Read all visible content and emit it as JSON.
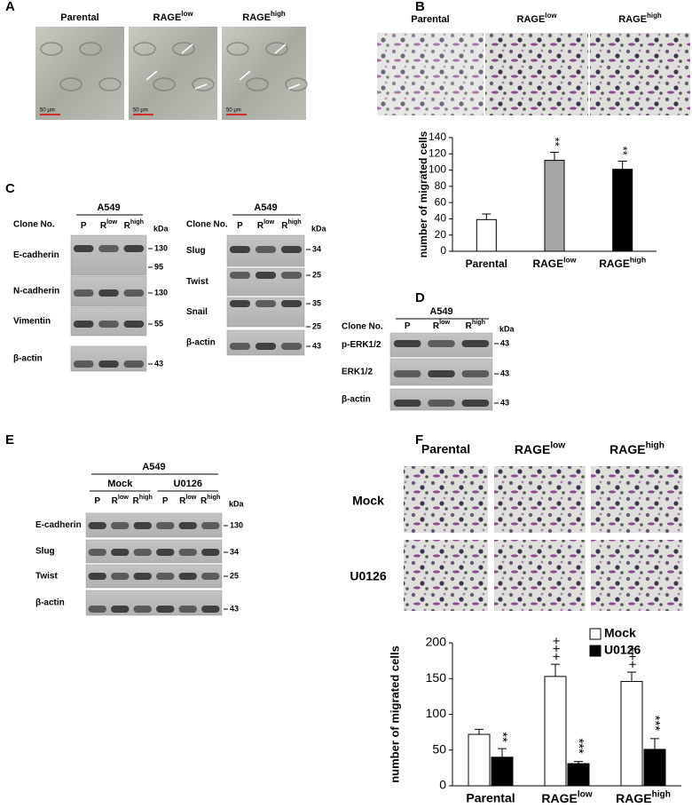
{
  "panel_labels": [
    "A",
    "B",
    "C",
    "D",
    "E",
    "F"
  ],
  "panel_a": {
    "columns": [
      "Parental",
      {
        "label": "RAGE",
        "sup": "low"
      },
      {
        "label": "RAGE",
        "sup": "high"
      }
    ],
    "scale_bar": "50 μm"
  },
  "panel_b": {
    "columns": [
      "Parental",
      {
        "label": "RAGE",
        "sup": "low"
      },
      {
        "label": "RAGE",
        "sup": "high"
      }
    ]
  },
  "panel_f": {
    "columns": [
      "Parental",
      {
        "label": "RAGE",
        "sup": "low"
      },
      {
        "label": "RAGE",
        "sup": "high"
      }
    ],
    "rows": [
      "Mock",
      "U0126"
    ]
  },
  "blots": {
    "c_left": {
      "clone_label": "Clone No.",
      "group": "A549",
      "unit": "kDa",
      "lanes": [
        {
          "label": "P"
        },
        {
          "label": "R",
          "sup": "low"
        },
        {
          "label": "R",
          "sup": "high"
        }
      ],
      "rows": [
        {
          "name": "E-cadherin",
          "markers": [
            130,
            95
          ]
        },
        {
          "name": "N-cadherin",
          "markers": [
            130
          ]
        },
        {
          "name": "Vimentin",
          "markers": [
            55
          ]
        },
        {
          "name": "β-actin",
          "markers": [
            43
          ]
        }
      ]
    },
    "c_right": {
      "clone_label": "Clone No.",
      "group": "A549",
      "unit": "kDa",
      "lanes": [
        {
          "label": "P"
        },
        {
          "label": "R",
          "sup": "low"
        },
        {
          "label": "R",
          "sup": "high"
        }
      ],
      "rows": [
        {
          "name": "Slug",
          "markers": [
            34
          ]
        },
        {
          "name": "Twist",
          "markers": [
            25
          ]
        },
        {
          "name": "Snail",
          "markers": [
            35,
            25
          ]
        },
        {
          "name": "β-actin",
          "markers": [
            43
          ]
        }
      ]
    },
    "d": {
      "clone_label": "Clone No.",
      "group": "A549",
      "unit": "kDa",
      "lanes": [
        {
          "label": "P"
        },
        {
          "label": "R",
          "sup": "low"
        },
        {
          "label": "R",
          "sup": "high"
        }
      ],
      "rows": [
        {
          "name": "p-ERK1/2",
          "markers": [
            43
          ]
        },
        {
          "name": "ERK1/2",
          "markers": [
            43
          ]
        },
        {
          "name": "β-actin",
          "markers": [
            43
          ]
        }
      ]
    },
    "e": {
      "group": "A549",
      "subgroups": [
        "Mock",
        "U0126"
      ],
      "unit": "kDa",
      "lanes": [
        {
          "label": "P"
        },
        {
          "label": "R",
          "sup": "low"
        },
        {
          "label": "R",
          "sup": "high"
        },
        {
          "label": "P"
        },
        {
          "label": "R",
          "sup": "low"
        },
        {
          "label": "R",
          "sup": "high"
        }
      ],
      "rows": [
        {
          "name": "E-cadherin",
          "markers": [
            130
          ]
        },
        {
          "name": "Slug",
          "markers": [
            34
          ]
        },
        {
          "name": "Twist",
          "markers": [
            25
          ]
        },
        {
          "name": "β-actin",
          "markers": [
            43
          ]
        }
      ]
    }
  },
  "chart_data": [
    {
      "type": "bar",
      "ylabel": "number of migrated cells",
      "categories": [
        "Parental",
        {
          "label": "RAGE",
          "sup": "low"
        },
        {
          "label": "RAGE",
          "sup": "high"
        }
      ],
      "values": [
        39,
        112,
        101
      ],
      "errors": [
        7,
        10,
        10
      ],
      "colors": [
        "#ffffff",
        "#a6a6a6",
        "#000000"
      ],
      "annotations": [
        null,
        "**",
        "**"
      ],
      "ylim": [
        0,
        140
      ],
      "yticks": [
        0,
        20,
        40,
        60,
        80,
        100,
        120,
        140
      ]
    },
    {
      "type": "grouped_bar",
      "ylabel": "number of migrated cells",
      "categories": [
        "Parental",
        {
          "label": "RAGE",
          "sup": "low"
        },
        {
          "label": "RAGE",
          "sup": "high"
        }
      ],
      "series": [
        {
          "name": "Mock",
          "color": "#ffffff",
          "values": [
            72,
            153,
            146
          ],
          "errors": [
            7,
            17,
            13
          ],
          "annotations": [
            null,
            "+++",
            "+++"
          ]
        },
        {
          "name": "U0126",
          "color": "#000000",
          "values": [
            40,
            31,
            51
          ],
          "errors": [
            12,
            3,
            15
          ],
          "annotations": [
            "**",
            "***",
            "***"
          ]
        }
      ],
      "ylim": [
        0,
        200
      ],
      "yticks": [
        0,
        50,
        100,
        150,
        200
      ],
      "legend": "upper right"
    }
  ]
}
